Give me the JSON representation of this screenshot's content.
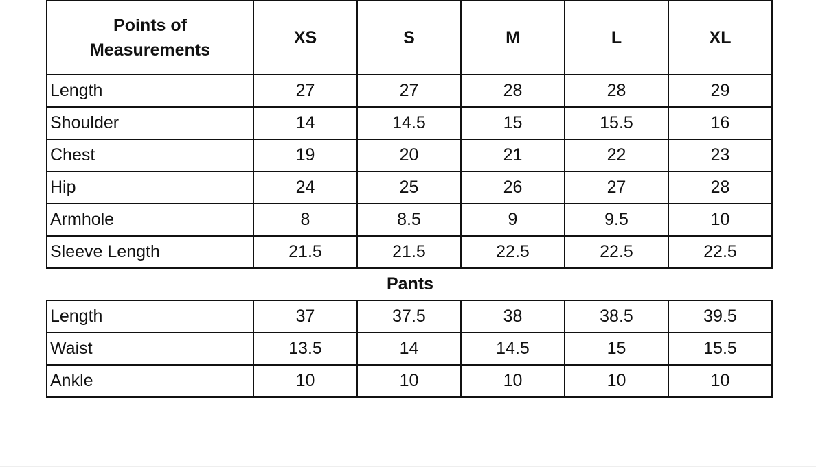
{
  "header": {
    "label": "Points of Measurements",
    "sizes": [
      "XS",
      "S",
      "M",
      "L",
      "XL"
    ]
  },
  "top_rows": [
    {
      "label": "Length",
      "values": [
        "27",
        "27",
        "28",
        "28",
        "29"
      ]
    },
    {
      "label": "Shoulder",
      "values": [
        "14",
        "14.5",
        "15",
        "15.5",
        "16"
      ]
    },
    {
      "label": "Chest",
      "values": [
        "19",
        "20",
        "21",
        "22",
        "23"
      ]
    },
    {
      "label": "Hip",
      "values": [
        "24",
        "25",
        "26",
        "27",
        "28"
      ]
    },
    {
      "label": "Armhole",
      "values": [
        "8",
        "8.5",
        "9",
        "9.5",
        "10"
      ]
    },
    {
      "label": "Sleeve Length",
      "values": [
        "21.5",
        "21.5",
        "22.5",
        "22.5",
        "22.5"
      ]
    }
  ],
  "pants": {
    "title": "Pants",
    "rows": [
      {
        "label": "Length",
        "values": [
          "37",
          "37.5",
          "38",
          "38.5",
          "39.5"
        ]
      },
      {
        "label": "Waist",
        "values": [
          "13.5",
          "14",
          "14.5",
          "15",
          "15.5"
        ]
      },
      {
        "label": "Ankle",
        "values": [
          "10",
          "10",
          "10",
          "10",
          "10"
        ]
      }
    ]
  }
}
